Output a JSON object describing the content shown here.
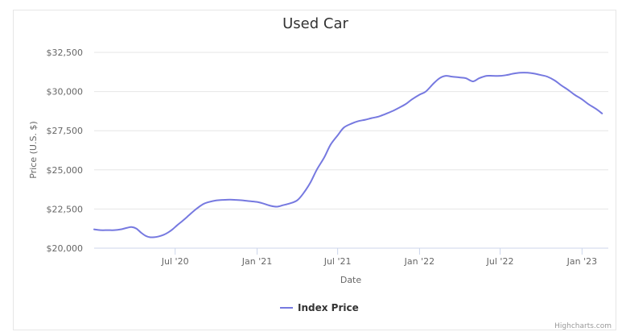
{
  "chart_data": {
    "type": "line",
    "title": "Used Car",
    "xlabel": "Date",
    "ylabel": "Price (U.S. $)",
    "x_tick_labels": [
      "Jul '20",
      "Jan '21",
      "Jul '21",
      "Jan '22",
      "Jul '22",
      "Jan '23"
    ],
    "y_tick_labels": [
      "$20,000",
      "$22,500",
      "$25,000",
      "$27,500",
      "$30,000",
      "$32,500"
    ],
    "ylim": [
      20000,
      32500
    ],
    "xlim": [
      "2020-01-01",
      "2023-03-01"
    ],
    "grid": "horizontal",
    "legend_position": "bottom-center",
    "color": "#7679e0",
    "series": [
      {
        "name": "Index Price",
        "x": [
          "2020-01-01",
          "2020-01-15",
          "2020-02-01",
          "2020-02-15",
          "2020-03-01",
          "2020-03-15",
          "2020-03-25",
          "2020-04-05",
          "2020-04-15",
          "2020-04-25",
          "2020-05-05",
          "2020-05-15",
          "2020-05-25",
          "2020-06-05",
          "2020-06-15",
          "2020-06-25",
          "2020-07-05",
          "2020-07-20",
          "2020-08-01",
          "2020-08-15",
          "2020-09-01",
          "2020-09-15",
          "2020-10-01",
          "2020-10-15",
          "2020-11-01",
          "2020-11-15",
          "2020-12-01",
          "2020-12-15",
          "2021-01-01",
          "2021-01-15",
          "2021-02-01",
          "2021-02-15",
          "2021-03-01",
          "2021-03-15",
          "2021-04-01",
          "2021-04-15",
          "2021-05-01",
          "2021-05-15",
          "2021-06-01",
          "2021-06-15",
          "2021-07-01",
          "2021-07-15",
          "2021-08-01",
          "2021-08-15",
          "2021-09-01",
          "2021-09-15",
          "2021-10-01",
          "2021-10-15",
          "2021-11-01",
          "2021-11-15",
          "2021-12-01",
          "2021-12-15",
          "2022-01-01",
          "2022-01-15",
          "2022-02-01",
          "2022-02-15",
          "2022-03-01",
          "2022-03-15",
          "2022-04-01",
          "2022-04-15",
          "2022-05-01",
          "2022-05-15",
          "2022-06-01",
          "2022-06-15",
          "2022-07-01",
          "2022-07-15",
          "2022-08-01",
          "2022-08-15",
          "2022-09-01",
          "2022-09-15",
          "2022-10-01",
          "2022-10-15",
          "2022-11-01",
          "2022-11-15",
          "2022-12-01",
          "2022-12-15",
          "2023-01-01",
          "2023-01-15",
          "2023-02-01",
          "2023-02-15"
        ],
        "values": [
          21200,
          21150,
          21150,
          21150,
          21200,
          21300,
          21350,
          21250,
          21000,
          20800,
          20700,
          20700,
          20750,
          20850,
          21000,
          21200,
          21450,
          21800,
          22100,
          22450,
          22800,
          22950,
          23050,
          23080,
          23100,
          23080,
          23050,
          23000,
          22950,
          22850,
          22700,
          22650,
          22750,
          22850,
          23050,
          23500,
          24200,
          25000,
          25800,
          26600,
          27200,
          27700,
          27950,
          28100,
          28200,
          28300,
          28400,
          28550,
          28750,
          28950,
          29200,
          29500,
          29800,
          30000,
          30500,
          30850,
          31000,
          30950,
          30900,
          30850,
          30650,
          30850,
          31000,
          31000,
          31000,
          31050,
          31150,
          31200,
          31200,
          31150,
          31050,
          30950,
          30700,
          30400,
          30100,
          29800,
          29500,
          29200,
          28900,
          28600
        ]
      }
    ]
  }
}
